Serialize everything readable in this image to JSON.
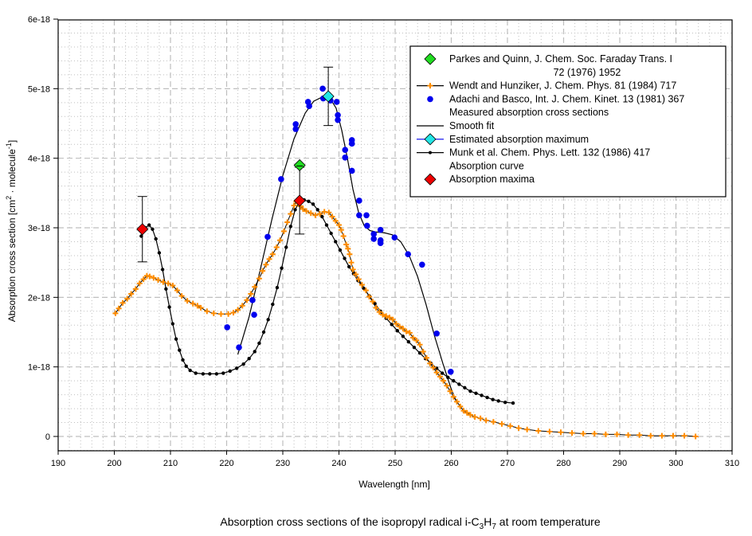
{
  "chart_data": {
    "type": "scatter",
    "title": "",
    "caption": {
      "before": "Absorption cross sections of the isopropyl radical i-C",
      "sub1": "3",
      "mid": "H",
      "sub2": "7",
      "after": " at room temperature"
    },
    "xlabel": "Wavelength [nm]",
    "ylabel": {
      "text1": "Absorption cross section [cm",
      "sup1": "2",
      "text2": " · molecule",
      "sup2": "-1",
      "text3": "]"
    },
    "xlim": [
      190,
      310
    ],
    "ylim": [
      -2e-19,
      6e-18
    ],
    "x_ticks": [
      "190",
      "200",
      "210",
      "220",
      "230",
      "240",
      "250",
      "260",
      "270",
      "280",
      "290",
      "300",
      "310"
    ],
    "x_tick_values": [
      190,
      200,
      210,
      220,
      230,
      240,
      250,
      260,
      270,
      280,
      290,
      300,
      310
    ],
    "y_ticks": [
      "0",
      "1e-18",
      "2e-18",
      "3e-18",
      "4e-18",
      "5e-18",
      "6e-18"
    ],
    "y_tick_values": [
      0,
      1e-18,
      2e-18,
      3e-18,
      4e-18,
      5e-18,
      6e-18
    ],
    "grid": true,
    "legend_position": "top-right",
    "colors": {
      "parkes": "#22dd22",
      "wendt": "#ff8c00",
      "adachi": "#0000ee",
      "smooth": "#000000",
      "estimated": "#22e6e6",
      "munk": "#000000",
      "maxima": "#ee0000",
      "grid": "#bfbfbf"
    },
    "legend": [
      {
        "key": "parkes",
        "lines": [
          "Parkes and Quinn, J. Chem. Soc. Faraday Trans. I",
          "72 (1976) 1952"
        ]
      },
      {
        "key": "wendt",
        "lines": [
          "Wendt and Hunziker, J. Chem. Phys. 81 (1984) 717"
        ]
      },
      {
        "key": "adachi",
        "lines": [
          "Adachi and Basco, Int. J. Chem. Kinet. 13 (1981) 367",
          "Measured absorption cross sections"
        ]
      },
      {
        "key": "smooth",
        "lines": [
          "Smooth fit"
        ]
      },
      {
        "key": "estimated",
        "lines": [
          "Estimated absorption maximum"
        ]
      },
      {
        "key": "munk",
        "lines": [
          "Munk et al. Chem. Phys. Lett. 132 (1986) 417",
          "Absorption curve"
        ]
      },
      {
        "key": "maxima",
        "lines": [
          "Absorption maxima"
        ]
      }
    ],
    "series": [
      {
        "name": "Parkes and Quinn, J. Chem. Soc. Faraday Trans. I 72 (1976) 1952",
        "key": "parkes",
        "style": "diamond",
        "x": [
          233.0
        ],
        "y": [
          3.9e-18
        ]
      },
      {
        "name": "Wendt and Hunziker, J. Chem. Phys. 81 (1984) 717",
        "key": "wendt",
        "style": "line-plus",
        "x": [
          200.2,
          200.8,
          201.5,
          202.3,
          203.0,
          203.8,
          204.5,
          205.2,
          205.8,
          206.3,
          207.0,
          207.8,
          208.7,
          209.6,
          210.4,
          211.2,
          212.0,
          213.0,
          214.0,
          214.8,
          215.4,
          216.5,
          217.7,
          219.0,
          220.3,
          221.2,
          222.0,
          222.8,
          223.6,
          224.3,
          225.0,
          225.8,
          226.4,
          227.0,
          227.6,
          228.2,
          228.9,
          229.5,
          230.2,
          230.8,
          231.4,
          232.0,
          232.4,
          232.8,
          233.2,
          233.6,
          234.2,
          235.0,
          235.8,
          236.6,
          237.4,
          238.2,
          238.8,
          239.4,
          240.0,
          240.4,
          240.8,
          241.3,
          241.6,
          241.9,
          242.2,
          242.5,
          243.0,
          243.5,
          244.1,
          244.8,
          245.4,
          246.0,
          246.6,
          247.2,
          247.8,
          248.4,
          249.0,
          249.6,
          250.2,
          250.8,
          251.4,
          252.0,
          252.6,
          253.2,
          253.8,
          254.4,
          255.0,
          255.6,
          256.2,
          256.8,
          257.4,
          258.0,
          258.6,
          259.2,
          259.8,
          260.4,
          261.0,
          261.6,
          262.2,
          262.8,
          263.4,
          264.2,
          265.2,
          266.2,
          267.5,
          269.0,
          270.5,
          272.0,
          273.5,
          275.5,
          277.5,
          279.5,
          281.5,
          283.5,
          285.5,
          287.5,
          289.5,
          291.5,
          293.5,
          295.5,
          297.5,
          299.5,
          301.5,
          303.5
        ],
        "y": [
          1.77,
          1.84,
          1.92,
          1.98,
          2.05,
          2.12,
          2.2,
          2.26,
          2.31,
          2.3,
          2.28,
          2.25,
          2.22,
          2.2,
          2.17,
          2.1,
          2.02,
          1.95,
          1.91,
          1.88,
          1.85,
          1.8,
          1.77,
          1.76,
          1.76,
          1.78,
          1.82,
          1.88,
          1.96,
          2.05,
          2.15,
          2.27,
          2.38,
          2.47,
          2.55,
          2.62,
          2.72,
          2.82,
          2.95,
          3.08,
          3.2,
          3.32,
          3.38,
          3.36,
          3.31,
          3.27,
          3.24,
          3.21,
          3.18,
          3.2,
          3.23,
          3.22,
          3.16,
          3.1,
          3.04,
          2.97,
          2.88,
          2.76,
          2.7,
          2.62,
          2.5,
          2.4,
          2.33,
          2.26,
          2.18,
          2.1,
          2.01,
          1.94,
          1.85,
          1.79,
          1.75,
          1.73,
          1.71,
          1.68,
          1.62,
          1.58,
          1.55,
          1.51,
          1.49,
          1.42,
          1.38,
          1.32,
          1.22,
          1.13,
          1.05,
          0.99,
          0.92,
          0.86,
          0.8,
          0.73,
          0.65,
          0.57,
          0.5,
          0.43,
          0.37,
          0.34,
          0.31,
          0.28,
          0.26,
          0.23,
          0.21,
          0.18,
          0.15,
          0.12,
          0.1,
          0.08,
          0.07,
          0.06,
          0.05,
          0.04,
          0.04,
          0.03,
          0.03,
          0.02,
          0.02,
          0.01,
          0.01,
          0.01,
          0.01,
          0.0
        ]
      },
      {
        "name": "Adachi and Basco, Int. J. Chem. Kinet. 13 (1981) 367 Measured absorption cross sections",
        "key": "adachi",
        "style": "dot",
        "x": [
          220.1,
          222.2,
          224.6,
          224.9,
          227.3,
          229.7,
          232.3,
          232.3,
          234.5,
          234.7,
          237.1,
          237.2,
          238.5,
          239.6,
          239.8,
          239.8,
          241.1,
          241.1,
          242.3,
          242.3,
          242.3,
          243.6,
          243.6,
          244.9,
          245.0,
          246.2,
          246.2,
          247.4,
          247.4,
          247.4,
          249.9,
          252.3,
          254.8,
          257.4,
          259.9
        ],
        "y": [
          1.57,
          1.28,
          1.96,
          1.75,
          2.87,
          3.7,
          4.49,
          4.42,
          4.81,
          4.75,
          5.0,
          4.86,
          4.83,
          4.81,
          4.62,
          4.55,
          4.12,
          4.01,
          4.26,
          4.21,
          3.82,
          3.39,
          3.18,
          3.18,
          3.03,
          2.91,
          2.84,
          2.97,
          2.82,
          2.78,
          2.86,
          2.62,
          2.47,
          1.48,
          0.93
        ]
      },
      {
        "name": "Smooth fit",
        "key": "smooth",
        "style": "line",
        "x": [
          222.0,
          224.0,
          226.0,
          228.0,
          230.0,
          232.0,
          234.0,
          235.5,
          237.0,
          238.5,
          239.5,
          240.5,
          241.5,
          242.5,
          243.5,
          244.5,
          245.5,
          246.5,
          248.0,
          249.5,
          251.0,
          252.5,
          254.0,
          255.5,
          257.0,
          258.5,
          260.0,
          260.8
        ],
        "y": [
          1.18,
          1.72,
          2.4,
          3.1,
          3.75,
          4.28,
          4.65,
          4.82,
          4.88,
          4.85,
          4.72,
          4.4,
          4.0,
          3.55,
          3.22,
          3.03,
          2.96,
          2.94,
          2.93,
          2.9,
          2.8,
          2.6,
          2.3,
          1.9,
          1.45,
          1.05,
          0.68,
          0.52
        ]
      },
      {
        "name": "Estimated absorption maximum",
        "key": "estimated",
        "style": "diamond",
        "x": [
          238.1
        ],
        "y": [
          4.89e-18
        ],
        "error": [
          4.2e-19
        ]
      },
      {
        "name": "Munk et al. Chem. Phys. Lett. 132 (1986) 417 Absorption curve",
        "key": "munk",
        "style": "line-dot",
        "x": [
          204.8,
          205.5,
          206.2,
          206.8,
          207.4,
          208.0,
          208.6,
          209.2,
          209.8,
          210.4,
          211.0,
          211.6,
          212.2,
          212.8,
          213.5,
          214.5,
          215.8,
          217.0,
          218.2,
          219.4,
          220.6,
          221.8,
          223.0,
          224.0,
          225.0,
          225.8,
          226.6,
          227.4,
          228.2,
          229.0,
          229.8,
          230.6,
          231.4,
          232.2,
          233.0,
          233.8,
          234.6,
          235.4,
          236.2,
          237.0,
          237.8,
          238.6,
          239.4,
          240.2,
          241.0,
          241.8,
          242.6,
          243.4,
          244.4,
          245.4,
          246.4,
          247.4,
          248.4,
          249.4,
          250.4,
          251.4,
          252.4,
          253.4,
          254.4,
          255.4,
          256.4,
          257.4,
          258.4,
          259.4,
          260.4,
          261.4,
          262.4,
          263.4,
          264.4,
          265.4,
          266.4,
          267.4,
          268.4,
          269.6,
          271.0
        ],
        "y": [
          2.88,
          3.0,
          3.04,
          2.98,
          2.84,
          2.64,
          2.4,
          2.12,
          1.86,
          1.62,
          1.4,
          1.24,
          1.1,
          1.01,
          0.95,
          0.91,
          0.9,
          0.9,
          0.9,
          0.91,
          0.94,
          0.98,
          1.04,
          1.12,
          1.22,
          1.34,
          1.5,
          1.68,
          1.9,
          2.14,
          2.42,
          2.72,
          3.02,
          3.26,
          3.38,
          3.4,
          3.38,
          3.34,
          3.26,
          3.16,
          3.04,
          2.92,
          2.8,
          2.68,
          2.56,
          2.44,
          2.34,
          2.24,
          2.13,
          2.02,
          1.91,
          1.8,
          1.7,
          1.61,
          1.52,
          1.44,
          1.36,
          1.28,
          1.2,
          1.12,
          1.05,
          0.98,
          0.91,
          0.85,
          0.8,
          0.75,
          0.7,
          0.65,
          0.62,
          0.59,
          0.56,
          0.53,
          0.51,
          0.49,
          0.48
        ]
      },
      {
        "name": "Absorption maxima",
        "key": "maxima",
        "style": "diamond",
        "x": [
          205.0,
          233.0
        ],
        "y": [
          2.98e-18,
          3.39e-18
        ],
        "error": [
          4.7e-19,
          4.8e-19
        ]
      }
    ]
  }
}
